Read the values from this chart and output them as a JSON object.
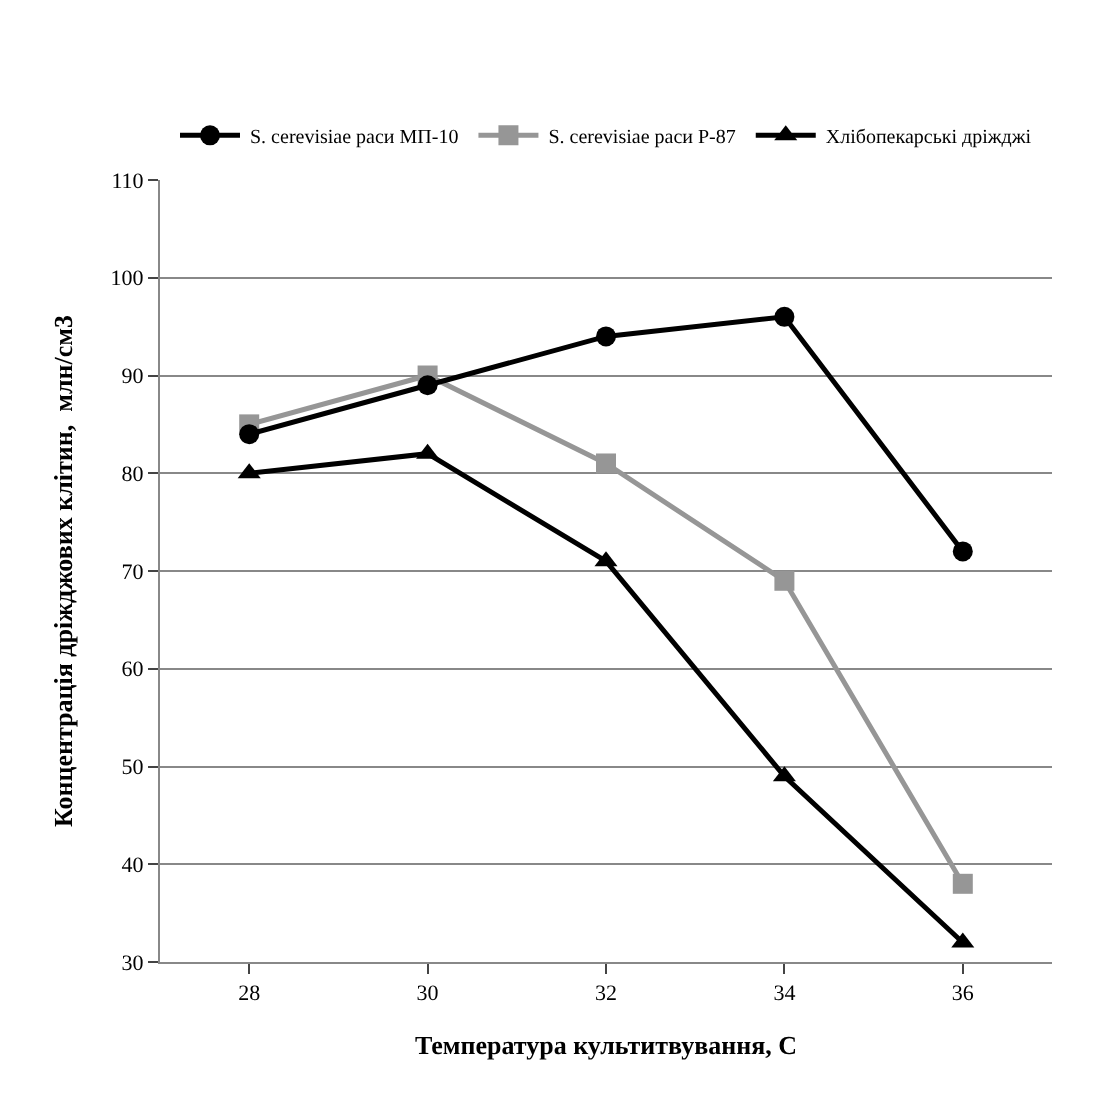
{
  "chart_data": {
    "type": "line",
    "xlabel": "Температура культитвування, С",
    "ylabel": "Концентрація дріжджових клітин,  млн/см3",
    "categories": [
      "28",
      "30",
      "32",
      "34",
      "36"
    ],
    "series": [
      {
        "name": "S. cerevisiae раси МП-10",
        "color": "#000000",
        "marker": "circle",
        "values": [
          84,
          89,
          94,
          96,
          72
        ]
      },
      {
        "name": "S. cerevisiae раси Р-87",
        "color": "#969696",
        "marker": "square",
        "values": [
          85,
          90,
          81,
          69,
          38
        ]
      },
      {
        "name": "Хлібопекарські дріжджі",
        "color": "#000000",
        "marker": "triangle",
        "values": [
          80,
          82,
          71,
          49,
          32
        ]
      }
    ],
    "ylim": [
      30,
      110
    ],
    "yticks": [
      30,
      40,
      50,
      60,
      70,
      80,
      90,
      100,
      110
    ],
    "grid": "y",
    "legend": "top",
    "line_style": "solid"
  }
}
